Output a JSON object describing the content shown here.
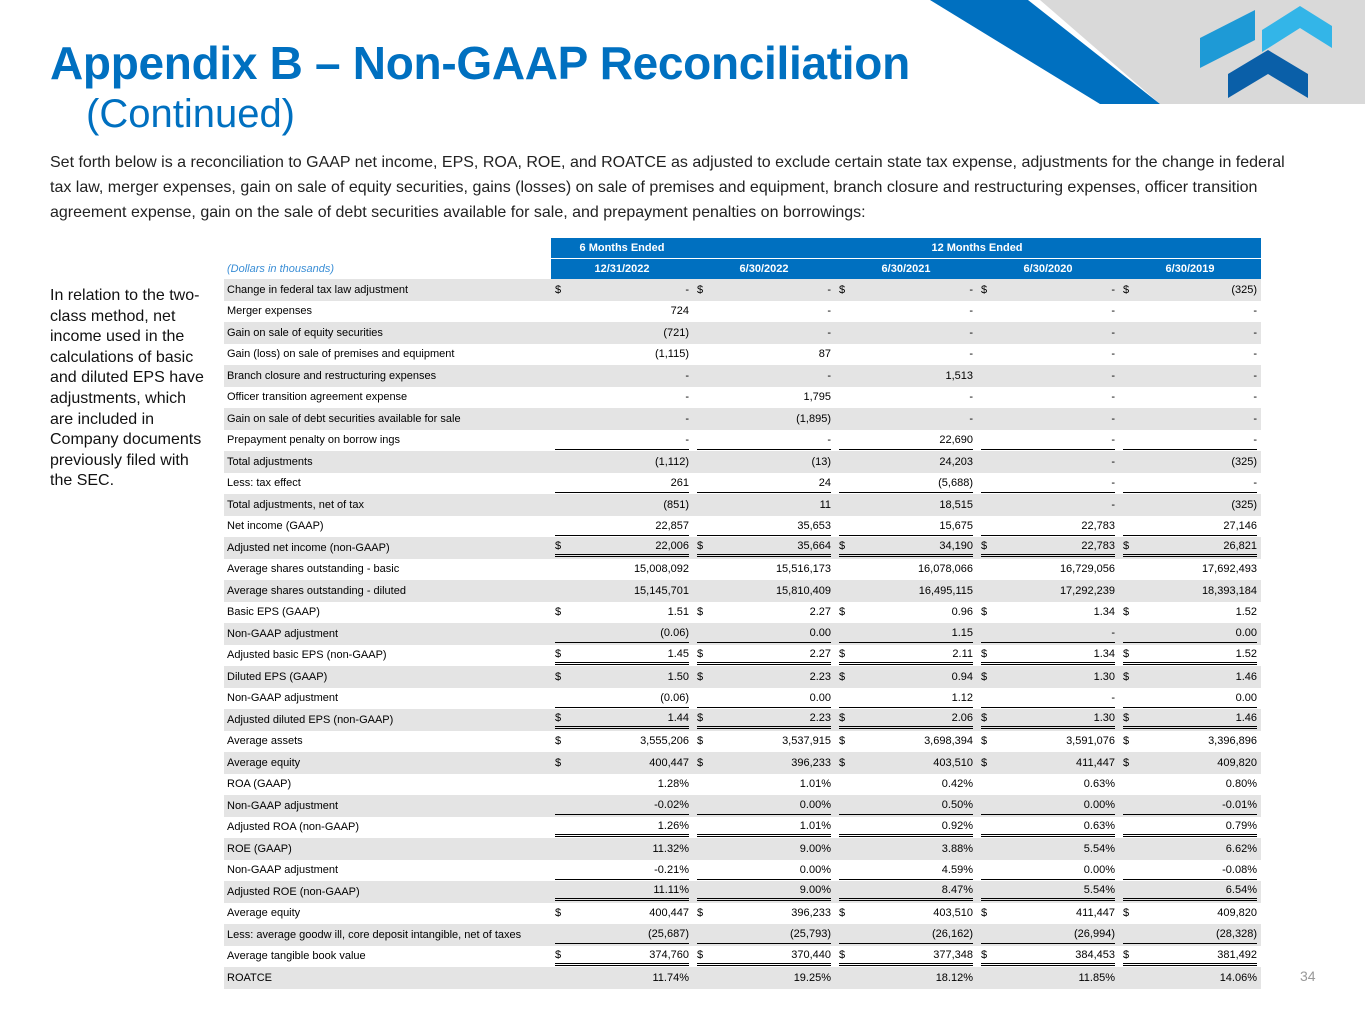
{
  "header": {
    "title": "Appendix B – Non-GAAP Reconciliation",
    "subtitle": "(Continued)"
  },
  "intro": "Set forth below is a reconciliation to GAAP net income, EPS, ROA, ROE, and ROATCE as adjusted to exclude certain state tax expense, adjustments for the change in federal tax law, merger expenses, gain on sale of equity securities, gains (losses) on sale of premises and equipment, branch closure and restructuring expenses, officer transition agreement expense, gain on the sale of debt securities available for sale, and prepayment penalties on borrowings:",
  "side_note": "In relation to the two-class method, net income used in the calculations of basic and diluted EPS have adjustments, which are included in Company documents previously filed with the SEC.",
  "table": {
    "groups": [
      "6 Months Ended",
      "12 Months Ended"
    ],
    "units": "(Dollars in thousands)",
    "columns": [
      "12/31/2022",
      "6/30/2022",
      "6/30/2021",
      "6/30/2020",
      "6/30/2019"
    ],
    "currency_symbol": "$",
    "rows": [
      {
        "label": "Change in federal tax law  adjustment",
        "dollar": true,
        "values": [
          "-",
          "-",
          "-",
          "-",
          "(325)"
        ]
      },
      {
        "label": "Merger expenses",
        "values": [
          "724",
          "-",
          "-",
          "-",
          "-"
        ]
      },
      {
        "label": "Gain on sale of equity securities",
        "values": [
          "(721)",
          "-",
          "-",
          "-",
          "-"
        ]
      },
      {
        "label": "Gain (loss) on sale of premises and equipment",
        "values": [
          "(1,115)",
          "87",
          "-",
          "-",
          "-"
        ]
      },
      {
        "label": "Branch closure and restructuring expenses",
        "values": [
          "-",
          "-",
          "1,513",
          "-",
          "-"
        ]
      },
      {
        "label": "Officer transition agreement expense",
        "values": [
          "-",
          "1,795",
          "-",
          "-",
          "-"
        ]
      },
      {
        "label": "Gain on sale of debt securities available for sale",
        "values": [
          "-",
          "(1,895)",
          "-",
          "-",
          "-"
        ]
      },
      {
        "label": "Prepayment penalty on borrow ings",
        "values": [
          "-",
          "-",
          "22,690",
          "-",
          "-"
        ],
        "rule": "single"
      },
      {
        "label": "Total adjustments",
        "values": [
          "(1,112)",
          "(13)",
          "24,203",
          "-",
          "(325)"
        ]
      },
      {
        "label": "Less: tax effect",
        "values": [
          "261",
          "24",
          "(5,688)",
          "-",
          "-"
        ],
        "rule": "single"
      },
      {
        "label": "Total adjustments, net of tax",
        "values": [
          "(851)",
          "11",
          "18,515",
          "-",
          "(325)"
        ]
      },
      {
        "label": "Net income (GAAP)",
        "values": [
          "22,857",
          "35,653",
          "15,675",
          "22,783",
          "27,146"
        ],
        "rule": "single"
      },
      {
        "label": "Adjusted net income (non-GAAP)",
        "dollar": true,
        "values": [
          "22,006",
          "35,664",
          "34,190",
          "22,783",
          "26,821"
        ],
        "rule": "double"
      },
      {
        "label": "Average shares outstanding - basic",
        "values": [
          "15,008,092",
          "15,516,173",
          "16,078,066",
          "16,729,056",
          "17,692,493"
        ]
      },
      {
        "label": "Average shares outstanding - diluted",
        "values": [
          "15,145,701",
          "15,810,409",
          "16,495,115",
          "17,292,239",
          "18,393,184"
        ]
      },
      {
        "label": "Basic EPS (GAAP)",
        "dollar": true,
        "values": [
          "1.51",
          "2.27",
          "0.96",
          "1.34",
          "1.52"
        ]
      },
      {
        "label": "Non-GAAP adjustment",
        "values": [
          "(0.06)",
          "0.00",
          "1.15",
          "-",
          "0.00"
        ],
        "rule": "single"
      },
      {
        "label": "Adjusted basic EPS (non-GAAP)",
        "dollar": true,
        "values": [
          "1.45",
          "2.27",
          "2.11",
          "1.34",
          "1.52"
        ],
        "rule": "double"
      },
      {
        "label": "Diluted EPS (GAAP)",
        "dollar": true,
        "values": [
          "1.50",
          "2.23",
          "0.94",
          "1.30",
          "1.46"
        ]
      },
      {
        "label": "Non-GAAP adjustment",
        "values": [
          "(0.06)",
          "0.00",
          "1.12",
          "-",
          "0.00"
        ],
        "rule": "single"
      },
      {
        "label": "Adjusted diluted EPS (non-GAAP)",
        "dollar": true,
        "values": [
          "1.44",
          "2.23",
          "2.06",
          "1.30",
          "1.46"
        ],
        "rule": "double"
      },
      {
        "label": "Average assets",
        "dollar": true,
        "values": [
          "3,555,206",
          "3,537,915",
          "3,698,394",
          "3,591,076",
          "3,396,896"
        ]
      },
      {
        "label": "Average equity",
        "dollar": true,
        "values": [
          "400,447",
          "396,233",
          "403,510",
          "411,447",
          "409,820"
        ]
      },
      {
        "label": "ROA (GAAP)",
        "values": [
          "1.28%",
          "1.01%",
          "0.42%",
          "0.63%",
          "0.80%"
        ]
      },
      {
        "label": "Non-GAAP adjustment",
        "values": [
          "-0.02%",
          "0.00%",
          "0.50%",
          "0.00%",
          "-0.01%"
        ],
        "rule": "single"
      },
      {
        "label": "Adjusted ROA (non-GAAP)",
        "values": [
          "1.26%",
          "1.01%",
          "0.92%",
          "0.63%",
          "0.79%"
        ],
        "rule": "double"
      },
      {
        "label": "ROE (GAAP)",
        "values": [
          "11.32%",
          "9.00%",
          "3.88%",
          "5.54%",
          "6.62%"
        ]
      },
      {
        "label": "Non-GAAP adjustment",
        "values": [
          "-0.21%",
          "0.00%",
          "4.59%",
          "0.00%",
          "-0.08%"
        ],
        "rule": "single"
      },
      {
        "label": "Adjusted ROE (non-GAAP)",
        "values": [
          "11.11%",
          "9.00%",
          "8.47%",
          "5.54%",
          "6.54%"
        ],
        "rule": "double"
      },
      {
        "label": "Average equity",
        "dollar": true,
        "values": [
          "400,447",
          "396,233",
          "403,510",
          "411,447",
          "409,820"
        ]
      },
      {
        "label": "Less: average goodw ill, core deposit intangible, net of taxes",
        "values": [
          "(25,687)",
          "(25,793)",
          "(26,162)",
          "(26,994)",
          "(28,328)"
        ],
        "rule": "single"
      },
      {
        "label": "Average tangible book value",
        "dollar": true,
        "values": [
          "374,760",
          "370,440",
          "377,348",
          "384,453",
          "381,492"
        ],
        "rule": "double"
      },
      {
        "label": "ROATCE",
        "values": [
          "11.74%",
          "19.25%",
          "18.12%",
          "11.85%",
          "14.06%"
        ]
      }
    ]
  },
  "page_number": "34"
}
